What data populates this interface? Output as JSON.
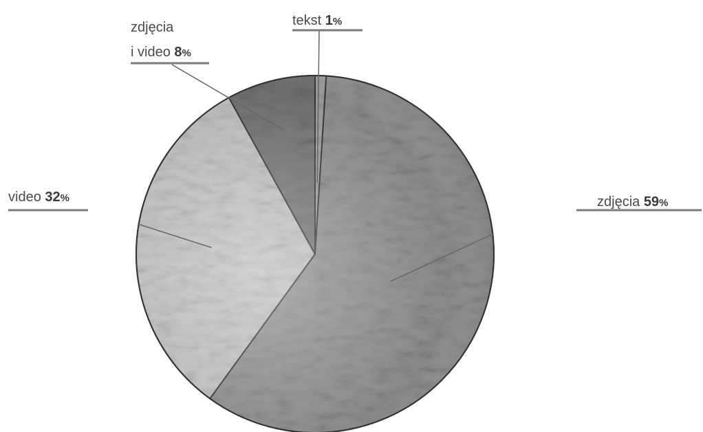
{
  "chart_data": {
    "type": "pie",
    "title": "",
    "slices": [
      {
        "label": "zdjęcia 59%",
        "name": "zdjęcia",
        "value": 59
      },
      {
        "label": "video 32%",
        "name": "video",
        "value": 32
      },
      {
        "label": "zdjęcia i video 8%",
        "name": "zdjęcia i video",
        "value": 8
      },
      {
        "label": "tekst 1%",
        "name": "tekst",
        "value": 1
      }
    ],
    "label_lines": [
      [
        "zdjęcia ",
        "59",
        "%"
      ],
      [
        "video ",
        "32",
        "%"
      ],
      [
        "zdjęcia",
        "i video ",
        "8",
        "%"
      ],
      [
        "tekst ",
        "1",
        "%"
      ]
    ],
    "start_direction": "top",
    "order": "clockwise from top: tekst, zdjęcia, video, zdjęcia i video",
    "fill_style": "grayscale engraved texture",
    "colors": {
      "outline": "#333333",
      "leader": "#666666",
      "underline": "#7a7a7a",
      "text": "#4a4a4a"
    }
  }
}
